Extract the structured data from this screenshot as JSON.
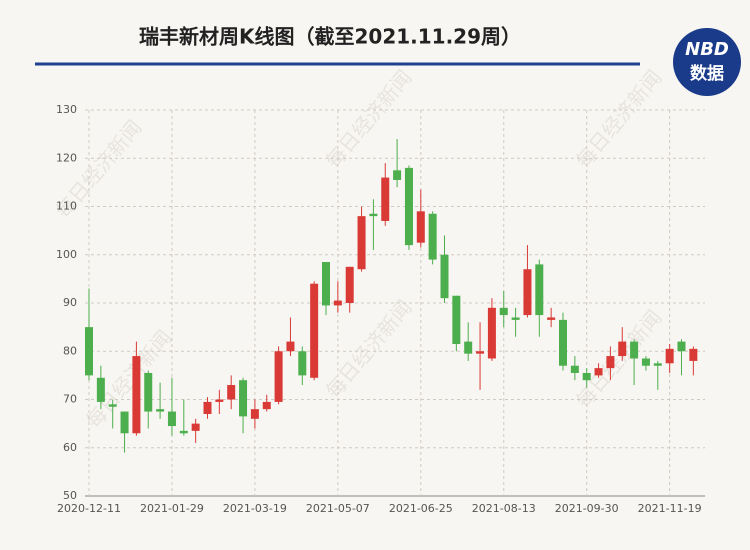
{
  "chart_data": {
    "type": "candlestick",
    "title": "瑞丰新材周K线图（截至2021.11.29周）",
    "logo": {
      "top": "NBD",
      "bottom": "数据"
    },
    "watermark": "每日经济新闻",
    "categories": [
      "2020-12-11",
      null,
      null,
      null,
      null,
      null,
      null,
      "2021-01-29",
      null,
      null,
      null,
      null,
      null,
      null,
      "2021-03-19",
      null,
      null,
      null,
      null,
      null,
      null,
      "2021-05-07",
      null,
      null,
      null,
      null,
      null,
      null,
      "2021-06-25",
      null,
      null,
      null,
      null,
      null,
      null,
      "2021-08-13",
      null,
      null,
      null,
      null,
      null,
      null,
      "2021-09-30",
      null,
      null,
      null,
      null,
      null,
      null,
      "2021-11-19",
      null,
      null
    ],
    "open": [
      85,
      74.5,
      69,
      67.5,
      63,
      75.5,
      68,
      67.5,
      63.5,
      63.5,
      67,
      69.5,
      70,
      74,
      66,
      68,
      69.5,
      80,
      80,
      74.5,
      98.5,
      89.5,
      90,
      97,
      108.5,
      107,
      117.5,
      118,
      102.5,
      108.5,
      100,
      91.5,
      82,
      79.5,
      78.5,
      89,
      87,
      87.5,
      98,
      86.5,
      86.5,
      77,
      75.5,
      75,
      76.5,
      79,
      82,
      78.5,
      77.5,
      77.5,
      82,
      78
    ],
    "high": [
      93,
      77,
      70,
      67.5,
      82,
      76,
      73.5,
      74.5,
      70,
      66,
      70.5,
      72,
      75,
      74.5,
      70,
      71,
      81,
      87,
      81,
      94.5,
      98.5,
      94.5,
      97.5,
      110,
      111.5,
      119,
      124,
      118.5,
      113.5,
      109,
      104,
      91.5,
      86,
      86,
      91,
      92.5,
      89,
      102,
      99,
      89,
      88,
      79,
      76.5,
      77.5,
      81,
      85,
      82.5,
      79,
      78,
      81.5,
      82.5,
      81
    ],
    "low": [
      74,
      68,
      64,
      59,
      62.5,
      64,
      66,
      62.5,
      62.5,
      61,
      66,
      67,
      68,
      63,
      64,
      67.5,
      69,
      79,
      73,
      74,
      87.5,
      88,
      88,
      96.5,
      101,
      106,
      114,
      101,
      101.5,
      98,
      90,
      80,
      78,
      72,
      78,
      85,
      83,
      87,
      83,
      85,
      76,
      74,
      72.5,
      74.5,
      74,
      78,
      73,
      76,
      72,
      75.5,
      75,
      75
    ],
    "close": [
      75,
      69.5,
      68.5,
      63,
      79,
      67.5,
      67.5,
      64.5,
      63,
      65,
      69.5,
      70,
      73,
      66.5,
      68,
      69.5,
      80,
      82,
      75,
      94,
      89.5,
      90.5,
      97.5,
      108,
      108,
      116,
      115.5,
      102,
      109,
      99,
      91,
      81.5,
      79.5,
      80,
      89,
      87.5,
      86.5,
      97,
      87.5,
      87,
      77,
      75.5,
      74,
      76.5,
      79,
      82,
      78.5,
      77,
      77,
      80.5,
      80,
      80.5
    ],
    "up_color": "#d93a36",
    "down_color": "#4cae4c",
    "ylim": [
      50,
      130
    ],
    "yticks": [
      50,
      60,
      70,
      80,
      90,
      100,
      110,
      120,
      130
    ],
    "grid": true
  }
}
